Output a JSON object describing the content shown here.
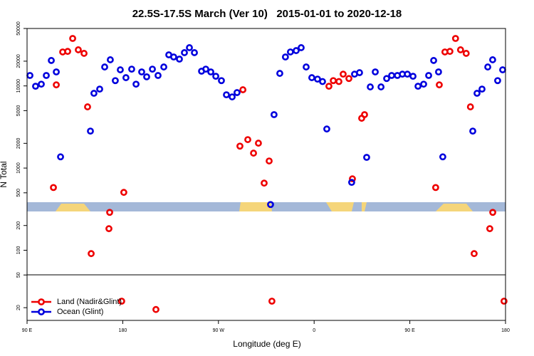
{
  "chart_data": {
    "type": "scatter",
    "title": "22.5S-17.5S March (Ver 10)   2015-01-01 to 2020-12-18",
    "x_label": "Longitude (deg E)",
    "y_label": "N Total",
    "log_y": true,
    "grid": false,
    "legend": "lower left",
    "xlim": [
      90,
      540
    ],
    "xticks": [
      {
        "value": 90,
        "label": "90 E"
      },
      180,
      {
        "value": 270,
        "label": "90 W"
      },
      {
        "value": 360,
        "label": "0"
      },
      {
        "value": 450,
        "label": "90 E"
      },
      {
        "value": 540,
        "label": "180"
      }
    ],
    "ylim": [
      14,
      50000
    ],
    "yticks": [
      20,
      50,
      100,
      200,
      500,
      1000,
      2000,
      5000,
      10000,
      20000,
      50000
    ],
    "series": [
      {
        "name": "Land (Nadir&Glint)",
        "color": "#ee0000",
        "x": [
          114.8,
          117.5,
          123.5,
          128.2,
          132.9,
          138.2,
          143.6,
          146.9,
          150.3,
          167,
          167.7,
          179,
          181,
          211.2,
          290.2,
          293,
          297.6,
          303,
          307.6,
          313,
          317.7,
          320.3,
          373.9,
          378,
          383.3,
          387.3,
          392.7,
          396,
          404.7,
          407.4,
          474.3,
          477.7,
          483,
          487.7,
          493,
          497.7,
          503,
          507,
          510.5,
          525.2,
          528,
          538.6
        ],
        "values": [
          580,
          10300,
          25900,
          26300,
          37800,
          27500,
          24900,
          5560,
          91,
          183,
          289,
          24,
          506,
          19,
          1850,
          8980,
          2220,
          1520,
          2010,
          656,
          1220,
          24,
          9910,
          11600,
          11300,
          13900,
          12300,
          740,
          4040,
          4470,
          580,
          10300,
          25900,
          26300,
          37800,
          27500,
          24900,
          5560,
          91,
          183,
          289,
          24
        ]
      },
      {
        "name": "Ocean (Glint)",
        "color": "#0000dd",
        "x": [
          92.7,
          98,
          103.4,
          108.1,
          112.8,
          117.5,
          121.5,
          149.6,
          152.9,
          158.3,
          163,
          168.3,
          173,
          177.7,
          183,
          188.4,
          192.5,
          197.8,
          202.5,
          207.9,
          213.2,
          218.6,
          223.3,
          227.9,
          233.3,
          238,
          242.7,
          247.4,
          254.1,
          258.1,
          262.8,
          267.5,
          272.8,
          277.5,
          282.9,
          287.5,
          319,
          322.3,
          327.7,
          333,
          337.7,
          343.1,
          347.8,
          352.5,
          357.8,
          363.2,
          367.9,
          371.9,
          395.3,
          398,
          402.7,
          409.4,
          412.8,
          417.5,
          422.9,
          428.2,
          432.9,
          438.3,
          443,
          447.7,
          453,
          457.7,
          463,
          467.7,
          472.4,
          477,
          481,
          509.2,
          513.2,
          517.9,
          523.3,
          527.9,
          532.6,
          537.3
        ],
        "values": [
          13400,
          9910,
          10500,
          13400,
          20400,
          14800,
          1370,
          2820,
          8130,
          9150,
          17000,
          20800,
          11600,
          15700,
          12600,
          16000,
          10500,
          14800,
          12900,
          16000,
          13400,
          17000,
          23900,
          22500,
          21200,
          25400,
          29200,
          25400,
          15100,
          16000,
          14800,
          13100,
          11600,
          7800,
          7350,
          8290,
          360,
          4470,
          14200,
          22500,
          25900,
          26900,
          29200,
          17000,
          12600,
          12100,
          11300,
          2990,
          670,
          13900,
          14500,
          1350,
          9720,
          14800,
          9720,
          12300,
          13400,
          13400,
          13900,
          13900,
          13100,
          9910,
          10500,
          13400,
          20400,
          14800,
          1370,
          2820,
          8130,
          9150,
          17000,
          20800,
          11600,
          15700
        ]
      }
    ]
  }
}
